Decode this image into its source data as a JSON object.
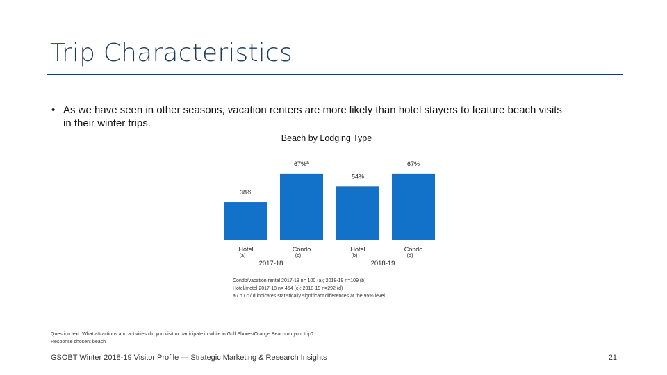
{
  "slide": {
    "title": "Trip Characteristics",
    "bullet_marker": "•",
    "bullet": "As we have seen in other seasons, vacation renters are more likely than hotel stayers to feature beach visits in their winter trips.",
    "question_text": "Question text: What attractions and activities did you visit or participate in while in Gulf Shores/Orange Beach on your trip?",
    "response_text": "Response chosen: beach",
    "footer": "GSOBT Winter 2018-19 Visitor Profile — Strategic Marketing & Research Insights",
    "page_number": "21",
    "notes": [
      "Condo/vacation rental 2017-18 n= 100 (a); 2018-19 n=109 (b)",
      "Hotel/motel 2017-18 n= 454 (c); 2018-19 n=292 (d)",
      "a / b / c / d indicates statistically significant differences at the 95% level."
    ]
  },
  "chart_data": {
    "type": "bar",
    "title": "Beach by Lodging Type",
    "color": "#1271c8",
    "ylim": [
      0,
      100
    ],
    "bars": [
      {
        "category": "Hotel",
        "sub": "(a)",
        "group": "2017-18",
        "value": 38,
        "label": "38%",
        "sig": ""
      },
      {
        "category": "Condo",
        "sub": "(c)",
        "group": "2017-18",
        "value": 67,
        "label": "67%",
        "sig": "a"
      },
      {
        "category": "Hotel",
        "sub": "(b)",
        "group": "2018-19",
        "value": 54,
        "label": "54%",
        "sig": ""
      },
      {
        "category": "Condo",
        "sub": "(d)",
        "group": "2018-19",
        "value": 67,
        "label": "67%",
        "sig": ""
      }
    ],
    "groups": [
      "2017-18",
      "2018-19"
    ]
  }
}
